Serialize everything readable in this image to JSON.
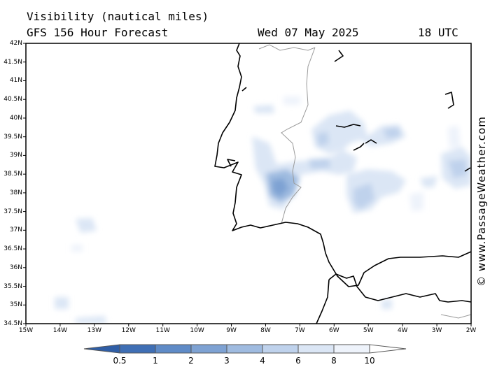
{
  "header": {
    "title": "Visibility (nautical miles)",
    "model": "GFS 156 Hour Forecast",
    "date": "Wed 07 May 2025",
    "time": "18 UTC"
  },
  "credit": "© www.PassageWeather.com",
  "lat_labels": [
    "42N",
    "41.5N",
    "41N",
    "40.5N",
    "40N",
    "39.5N",
    "39N",
    "38.5N",
    "38N",
    "37.5N",
    "37N",
    "36.5N",
    "36N",
    "35.5N",
    "35N",
    "34.5N"
  ],
  "lon_labels": [
    "15W",
    "14W",
    "13W",
    "12W",
    "11W",
    "10W",
    "9W",
    "8W",
    "7W",
    "6W",
    "5W",
    "4W",
    "3W",
    "2W"
  ],
  "legend": {
    "labels": [
      "0.5",
      "1",
      "2",
      "3",
      "4",
      "6",
      "8",
      "10"
    ],
    "colors": [
      "#3f6fb5",
      "#5f8bc7",
      "#7ea2d3",
      "#9fbbe0",
      "#bfd2ec",
      "#dbe6f5",
      "#eef3fb",
      "#ffffff"
    ]
  }
}
